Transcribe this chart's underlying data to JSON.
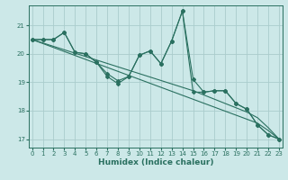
{
  "xlabel": "Humidex (Indice chaleur)",
  "background_color": "#cce8e8",
  "grid_color": "#aacccc",
  "line_color": "#2a7060",
  "xlim": [
    -0.3,
    23.3
  ],
  "ylim": [
    16.7,
    21.7
  ],
  "xticks": [
    0,
    1,
    2,
    3,
    4,
    5,
    6,
    7,
    8,
    9,
    10,
    11,
    12,
    13,
    14,
    15,
    16,
    17,
    18,
    19,
    20,
    21,
    22,
    23
  ],
  "yticks": [
    17,
    18,
    19,
    20,
    21
  ],
  "series1": [
    20.5,
    20.5,
    20.5,
    20.75,
    20.05,
    20.0,
    19.7,
    19.3,
    19.05,
    19.2,
    19.95,
    20.1,
    19.65,
    20.45,
    21.5,
    18.65,
    18.65,
    18.7,
    18.7,
    18.25,
    18.05,
    17.5,
    17.15,
    17.0
  ],
  "series2": [
    20.5,
    20.5,
    20.5,
    20.75,
    20.05,
    20.0,
    19.7,
    19.2,
    18.95,
    19.2,
    19.95,
    20.1,
    19.65,
    20.45,
    21.5,
    19.1,
    18.65,
    18.7,
    18.7,
    18.25,
    18.05,
    17.5,
    17.15,
    17.0
  ],
  "trend1": [
    20.5,
    20.38,
    20.26,
    20.14,
    20.02,
    19.9,
    19.78,
    19.66,
    19.54,
    19.42,
    19.3,
    19.18,
    19.06,
    18.94,
    18.82,
    18.7,
    18.55,
    18.4,
    18.25,
    18.1,
    17.95,
    17.75,
    17.4,
    17.0
  ],
  "trend2": [
    20.5,
    20.36,
    20.22,
    20.08,
    19.94,
    19.8,
    19.66,
    19.52,
    19.38,
    19.24,
    19.1,
    18.96,
    18.82,
    18.68,
    18.54,
    18.4,
    18.26,
    18.12,
    17.98,
    17.84,
    17.7,
    17.56,
    17.3,
    17.0
  ]
}
